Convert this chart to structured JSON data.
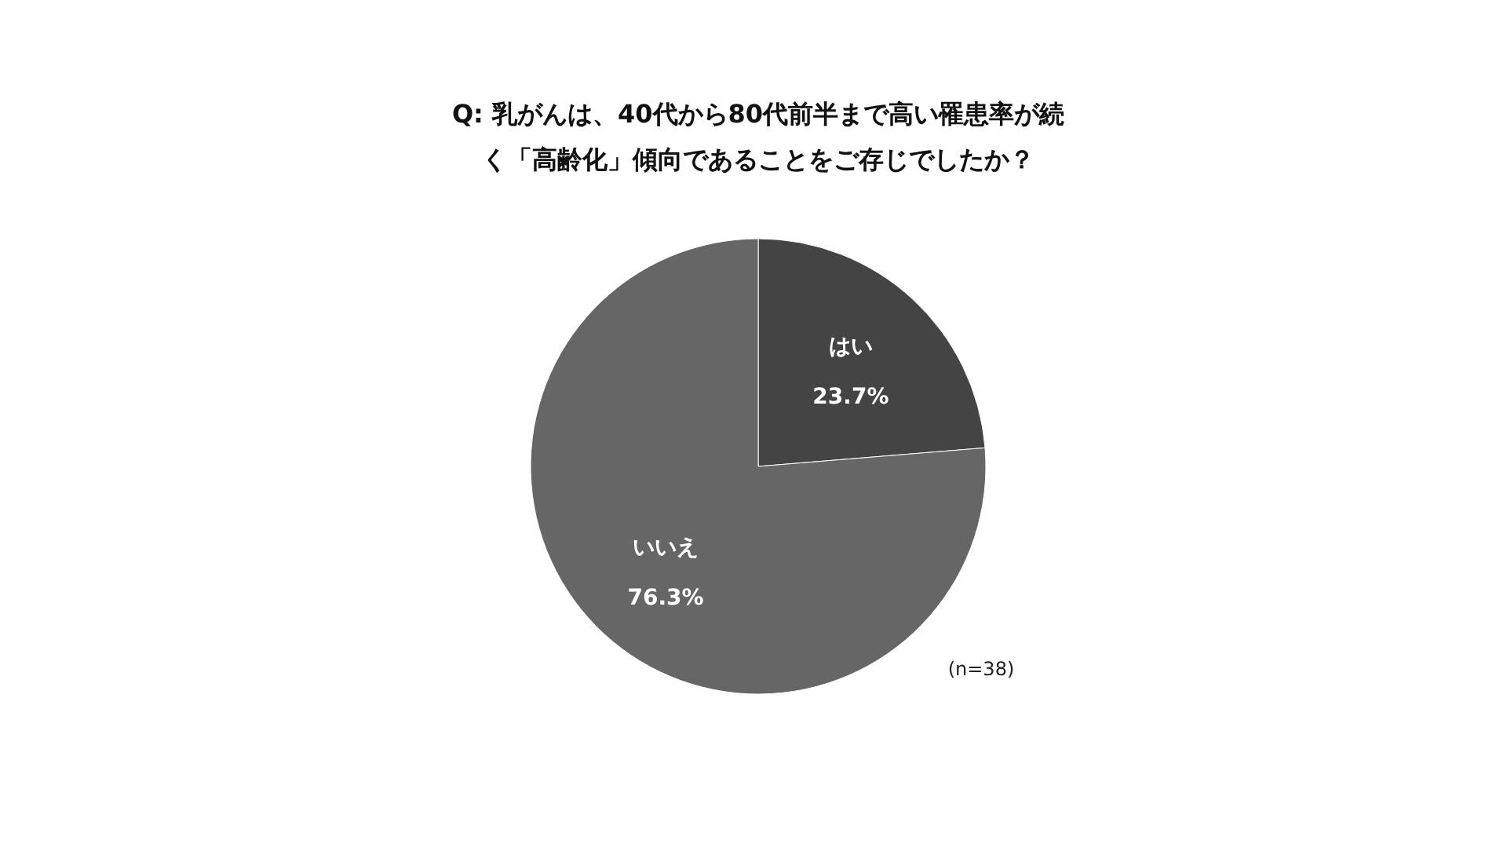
{
  "chart_data": {
    "type": "pie",
    "title": "Q: 乳がんは、40代から80代前半まで高い罹患率が続く「高齢化」傾向であることをご存じでしたか？",
    "categories": [
      "はい",
      "いいえ"
    ],
    "values": [
      23.7,
      76.3
    ],
    "colors": [
      "#444444",
      "#666666"
    ],
    "value_labels": [
      "23.7%",
      "76.3%"
    ],
    "annotations": [
      "(n=38)"
    ]
  }
}
